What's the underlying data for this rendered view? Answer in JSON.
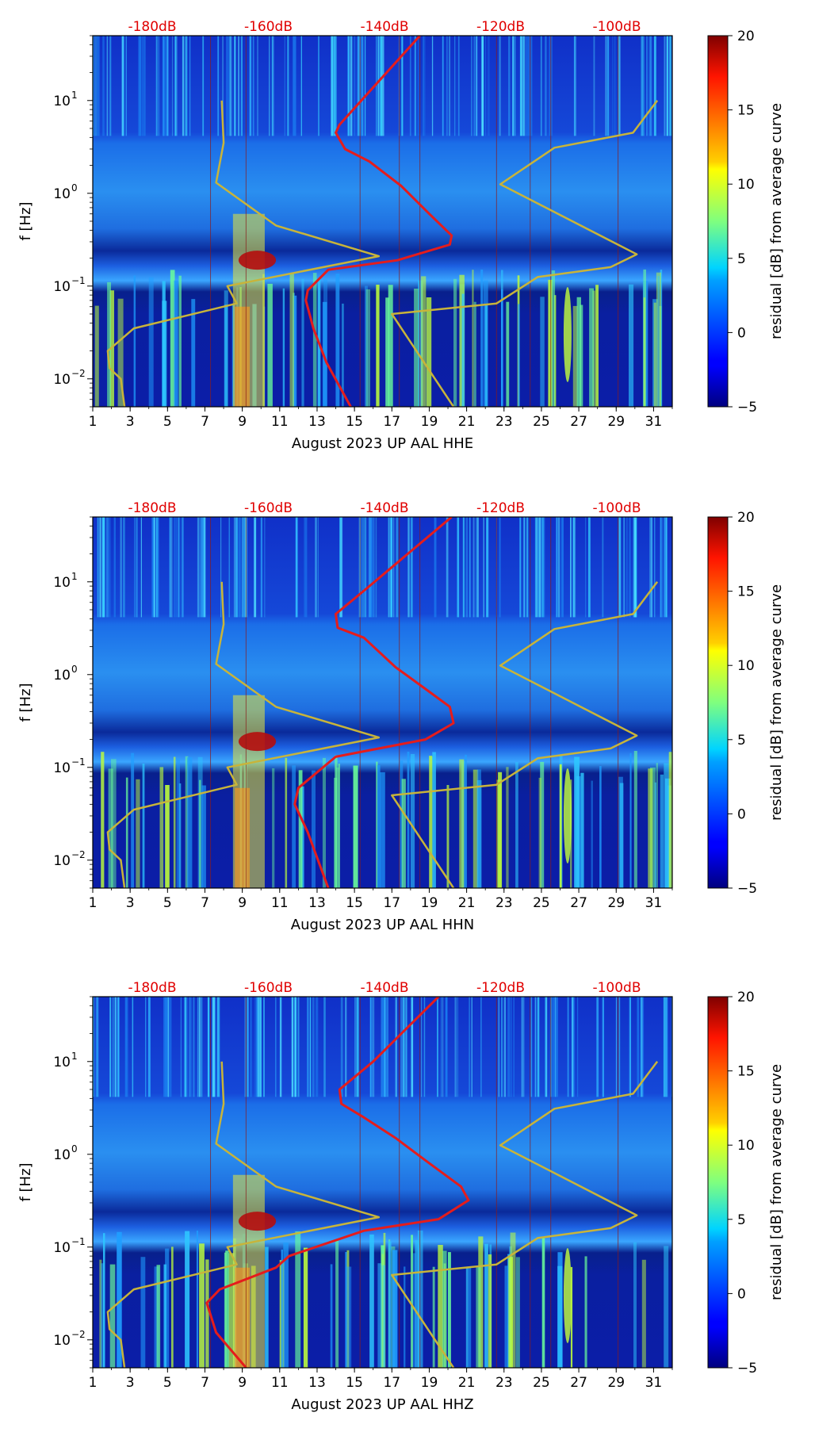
{
  "colors": {
    "curve_red": "#e51c1c",
    "curve_gold": "#c8b43a",
    "db_label": "#e00000",
    "grid_line": "#8b1a1a"
  },
  "colorbar": {
    "label": "residual [dB] from average curve",
    "range": [
      -5,
      20
    ],
    "ticks": [
      "20",
      "15",
      "10",
      "5",
      "0",
      "−5"
    ],
    "colormap": "jet"
  },
  "chart_data": [
    {
      "type": "heatmap",
      "component": "HHE",
      "xlabel": "August 2023 UP AAL  HHE",
      "ylabel": "f [Hz]",
      "xlim": [
        1,
        32
      ],
      "ylim": [
        0.005,
        50
      ],
      "yscale": "log",
      "x_ticks": [
        "1",
        "3",
        "5",
        "7",
        "9",
        "11",
        "13",
        "15",
        "17",
        "19",
        "21",
        "23",
        "25",
        "27",
        "29",
        "31"
      ],
      "y_ticks": [
        {
          "label_base": "10",
          "label_exp": "1",
          "value": 10
        },
        {
          "label_base": "10",
          "label_exp": "0",
          "value": 1
        },
        {
          "label_base": "10",
          "label_exp": "−1",
          "value": 0.1
        },
        {
          "label_base": "10",
          "label_exp": "−2",
          "value": 0.01
        }
      ],
      "db_axis_labels": [
        "-180dB",
        "-160dB",
        "-140dB",
        "-120dB",
        "-100dB"
      ],
      "series": [
        {
          "name": "PSD level curve (red)",
          "points": [
            [
              18.5,
              50
            ],
            [
              14.2,
              5.5
            ],
            [
              14.0,
              4.5
            ],
            [
              14.5,
              3.0
            ],
            [
              15.8,
              2.2
            ],
            [
              17.5,
              1.2
            ],
            [
              19.0,
              0.6
            ],
            [
              20.2,
              0.35
            ],
            [
              20.1,
              0.28
            ],
            [
              17.3,
              0.19
            ],
            [
              13.6,
              0.15
            ],
            [
              12.5,
              0.09
            ],
            [
              12.4,
              0.07
            ],
            [
              12.8,
              0.035
            ],
            [
              13.5,
              0.015
            ],
            [
              14.8,
              0.005
            ]
          ]
        },
        {
          "name": "model curve (gold)",
          "points": [
            [
              7.9,
              10
            ],
            [
              8.0,
              3.5
            ],
            [
              7.6,
              1.3
            ],
            [
              10.8,
              0.45
            ],
            [
              16.3,
              0.21
            ],
            [
              8.2,
              0.1
            ],
            [
              8.7,
              0.065
            ],
            [
              3.2,
              0.035
            ],
            [
              1.8,
              0.02
            ],
            [
              1.9,
              0.013
            ],
            [
              2.5,
              0.01
            ],
            [
              2.7,
              0.005
            ]
          ]
        },
        {
          "name": "model curve right (gold)",
          "points": [
            [
              31.2,
              10
            ],
            [
              29.9,
              4.5
            ],
            [
              25.7,
              3.1
            ],
            [
              22.8,
              1.25
            ],
            [
              30.1,
              0.22
            ],
            [
              28.7,
              0.16
            ],
            [
              24.8,
              0.125
            ],
            [
              22.6,
              0.065
            ],
            [
              17.0,
              0.05
            ],
            [
              20.3,
              0.005
            ]
          ]
        }
      ]
    },
    {
      "type": "heatmap",
      "component": "HHN",
      "xlabel": "August 2023 UP AAL  HHN",
      "ylabel": "f [Hz]",
      "xlim": [
        1,
        32
      ],
      "ylim": [
        0.005,
        50
      ],
      "yscale": "log",
      "x_ticks": [
        "1",
        "3",
        "5",
        "7",
        "9",
        "11",
        "13",
        "15",
        "17",
        "19",
        "21",
        "23",
        "25",
        "27",
        "29",
        "31"
      ],
      "y_ticks": [
        {
          "label_base": "10",
          "label_exp": "1",
          "value": 10
        },
        {
          "label_base": "10",
          "label_exp": "0",
          "value": 1
        },
        {
          "label_base": "10",
          "label_exp": "−1",
          "value": 0.1
        },
        {
          "label_base": "10",
          "label_exp": "−2",
          "value": 0.01
        }
      ],
      "db_axis_labels": [
        "-180dB",
        "-160dB",
        "-140dB",
        "-120dB",
        "-100dB"
      ],
      "series": [
        {
          "name": "PSD level curve (red)",
          "points": [
            [
              20.2,
              50
            ],
            [
              15.5,
              8.0
            ],
            [
              14.0,
              4.5
            ],
            [
              14.1,
              3.2
            ],
            [
              15.5,
              2.5
            ],
            [
              17.2,
              1.2
            ],
            [
              18.8,
              0.7
            ],
            [
              20.1,
              0.45
            ],
            [
              20.3,
              0.3
            ],
            [
              18.8,
              0.2
            ],
            [
              14.0,
              0.13
            ],
            [
              12.0,
              0.06
            ],
            [
              11.8,
              0.04
            ],
            [
              12.5,
              0.02
            ],
            [
              13.6,
              0.005
            ]
          ]
        },
        {
          "name": "model curve (gold)",
          "points": [
            [
              7.9,
              10
            ],
            [
              8.0,
              3.5
            ],
            [
              7.6,
              1.3
            ],
            [
              10.8,
              0.45
            ],
            [
              16.3,
              0.21
            ],
            [
              8.2,
              0.1
            ],
            [
              8.7,
              0.065
            ],
            [
              3.2,
              0.035
            ],
            [
              1.8,
              0.02
            ],
            [
              1.9,
              0.013
            ],
            [
              2.5,
              0.01
            ],
            [
              2.7,
              0.005
            ]
          ]
        },
        {
          "name": "model curve right (gold)",
          "points": [
            [
              31.2,
              10
            ],
            [
              29.9,
              4.5
            ],
            [
              25.7,
              3.1
            ],
            [
              22.8,
              1.25
            ],
            [
              30.1,
              0.22
            ],
            [
              28.7,
              0.16
            ],
            [
              24.8,
              0.125
            ],
            [
              22.6,
              0.065
            ],
            [
              17.0,
              0.05
            ],
            [
              20.3,
              0.005
            ]
          ]
        }
      ]
    },
    {
      "type": "heatmap",
      "component": "HHZ",
      "xlabel": "August 2023 UP AAL  HHZ",
      "ylabel": "f [Hz]",
      "xlim": [
        1,
        32
      ],
      "ylim": [
        0.005,
        50
      ],
      "yscale": "log",
      "x_ticks": [
        "1",
        "3",
        "5",
        "7",
        "9",
        "11",
        "13",
        "15",
        "17",
        "19",
        "21",
        "23",
        "25",
        "27",
        "29",
        "31"
      ],
      "y_ticks": [
        {
          "label_base": "10",
          "label_exp": "1",
          "value": 10
        },
        {
          "label_base": "10",
          "label_exp": "0",
          "value": 1
        },
        {
          "label_base": "10",
          "label_exp": "−1",
          "value": 0.1
        },
        {
          "label_base": "10",
          "label_exp": "−2",
          "value": 0.01
        }
      ],
      "db_axis_labels": [
        "-180dB",
        "-160dB",
        "-140dB",
        "-120dB",
        "-100dB"
      ],
      "series": [
        {
          "name": "PSD level curve (red)",
          "points": [
            [
              19.5,
              50
            ],
            [
              16.0,
              10
            ],
            [
              14.2,
              5.0
            ],
            [
              14.3,
              3.5
            ],
            [
              15.5,
              2.5
            ],
            [
              17.2,
              1.5
            ],
            [
              19.0,
              0.8
            ],
            [
              20.7,
              0.45
            ],
            [
              21.1,
              0.32
            ],
            [
              19.5,
              0.2
            ],
            [
              15.5,
              0.15
            ],
            [
              11.5,
              0.08
            ],
            [
              10.8,
              0.06
            ],
            [
              7.8,
              0.035
            ],
            [
              7.1,
              0.025
            ],
            [
              7.6,
              0.012
            ],
            [
              9.2,
              0.005
            ]
          ]
        },
        {
          "name": "model curve (gold)",
          "points": [
            [
              7.9,
              10
            ],
            [
              8.0,
              3.5
            ],
            [
              7.6,
              1.3
            ],
            [
              10.8,
              0.45
            ],
            [
              16.3,
              0.21
            ],
            [
              8.2,
              0.1
            ],
            [
              8.7,
              0.065
            ],
            [
              3.2,
              0.035
            ],
            [
              1.8,
              0.02
            ],
            [
              1.9,
              0.013
            ],
            [
              2.5,
              0.01
            ],
            [
              2.7,
              0.005
            ]
          ]
        },
        {
          "name": "model curve right (gold)",
          "points": [
            [
              31.2,
              10
            ],
            [
              29.9,
              4.5
            ],
            [
              25.7,
              3.1
            ],
            [
              22.8,
              1.25
            ],
            [
              30.1,
              0.22
            ],
            [
              28.7,
              0.16
            ],
            [
              24.8,
              0.125
            ],
            [
              22.6,
              0.065
            ],
            [
              17.0,
              0.05
            ],
            [
              20.3,
              0.005
            ]
          ]
        }
      ]
    }
  ]
}
